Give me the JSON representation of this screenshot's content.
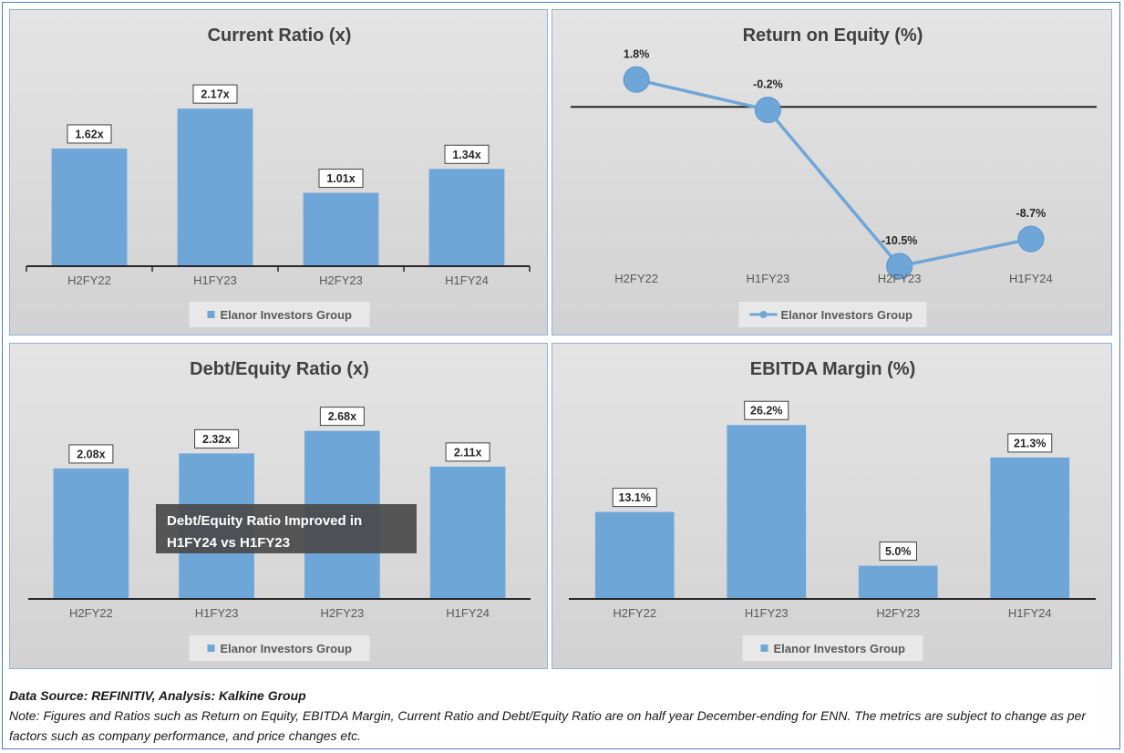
{
  "colors": {
    "bar": "#6fa6d8",
    "axis": "#262626",
    "label_border": "#404040",
    "annotation_bg": "#4a4a4a",
    "annotation_text": "#ffffff"
  },
  "chart_data": [
    {
      "id": "current-ratio",
      "type": "bar",
      "title": "Current Ratio (x)",
      "categories": [
        "H2FY22",
        "H1FY23",
        "H2FY23",
        "H1FY24"
      ],
      "series": [
        {
          "name": "Elanor Investors Group",
          "values": [
            1.62,
            2.17,
            1.01,
            1.34
          ]
        }
      ],
      "labels": [
        "1.62x",
        "2.17x",
        "1.01x",
        "1.34x"
      ],
      "ylim": [
        0,
        2.9
      ],
      "legend": "bottom",
      "grid": false
    },
    {
      "id": "return-on-equity",
      "type": "line",
      "title": "Return on Equity (%)",
      "categories": [
        "H2FY22",
        "H1FY23",
        "H2FY23",
        "H1FY24"
      ],
      "series": [
        {
          "name": "Elanor Investors Group",
          "values": [
            1.8,
            -0.2,
            -10.5,
            -8.7
          ]
        }
      ],
      "labels": [
        "1.8%",
        "-0.2%",
        "-10.5%",
        "-8.7%"
      ],
      "ylim": [
        -12,
        3.5
      ],
      "legend": "bottom",
      "grid": false
    },
    {
      "id": "debt-equity-ratio",
      "type": "bar",
      "title": "Debt/Equity Ratio (x)",
      "categories": [
        "H2FY22",
        "H1FY23",
        "H2FY23",
        "H1FY24"
      ],
      "series": [
        {
          "name": "Elanor Investors Group",
          "values": [
            2.08,
            2.32,
            2.68,
            2.11
          ]
        }
      ],
      "labels": [
        "2.08x",
        "2.32x",
        "2.68x",
        "2.11x"
      ],
      "ylim": [
        0,
        3.3
      ],
      "annotation": [
        "Debt/Equity Ratio Improved in",
        "H1FY24 vs H1FY23"
      ],
      "legend": "bottom",
      "grid": false
    },
    {
      "id": "ebitda-margin",
      "type": "bar",
      "title": "EBITDA Margin (%)",
      "categories": [
        "H2FY22",
        "H1FY23",
        "H2FY23",
        "H1FY24"
      ],
      "series": [
        {
          "name": "Elanor Investors Group",
          "values": [
            13.1,
            26.2,
            5.0,
            21.3
          ]
        }
      ],
      "labels": [
        "13.1%",
        "26.2%",
        "5.0%",
        "21.3%"
      ],
      "ylim": [
        0,
        32
      ],
      "legend": "bottom",
      "grid": false
    }
  ],
  "footer": {
    "source": "Data Source: REFINITIV, Analysis: Kalkine Group",
    "note": "Note: Figures and Ratios such as Return on Equity, EBITDA Margin, Current Ratio and Debt/Equity Ratio are on half year December-ending for ENN. The metrics are subject to change as per factors such as company performance, and price changes etc."
  }
}
